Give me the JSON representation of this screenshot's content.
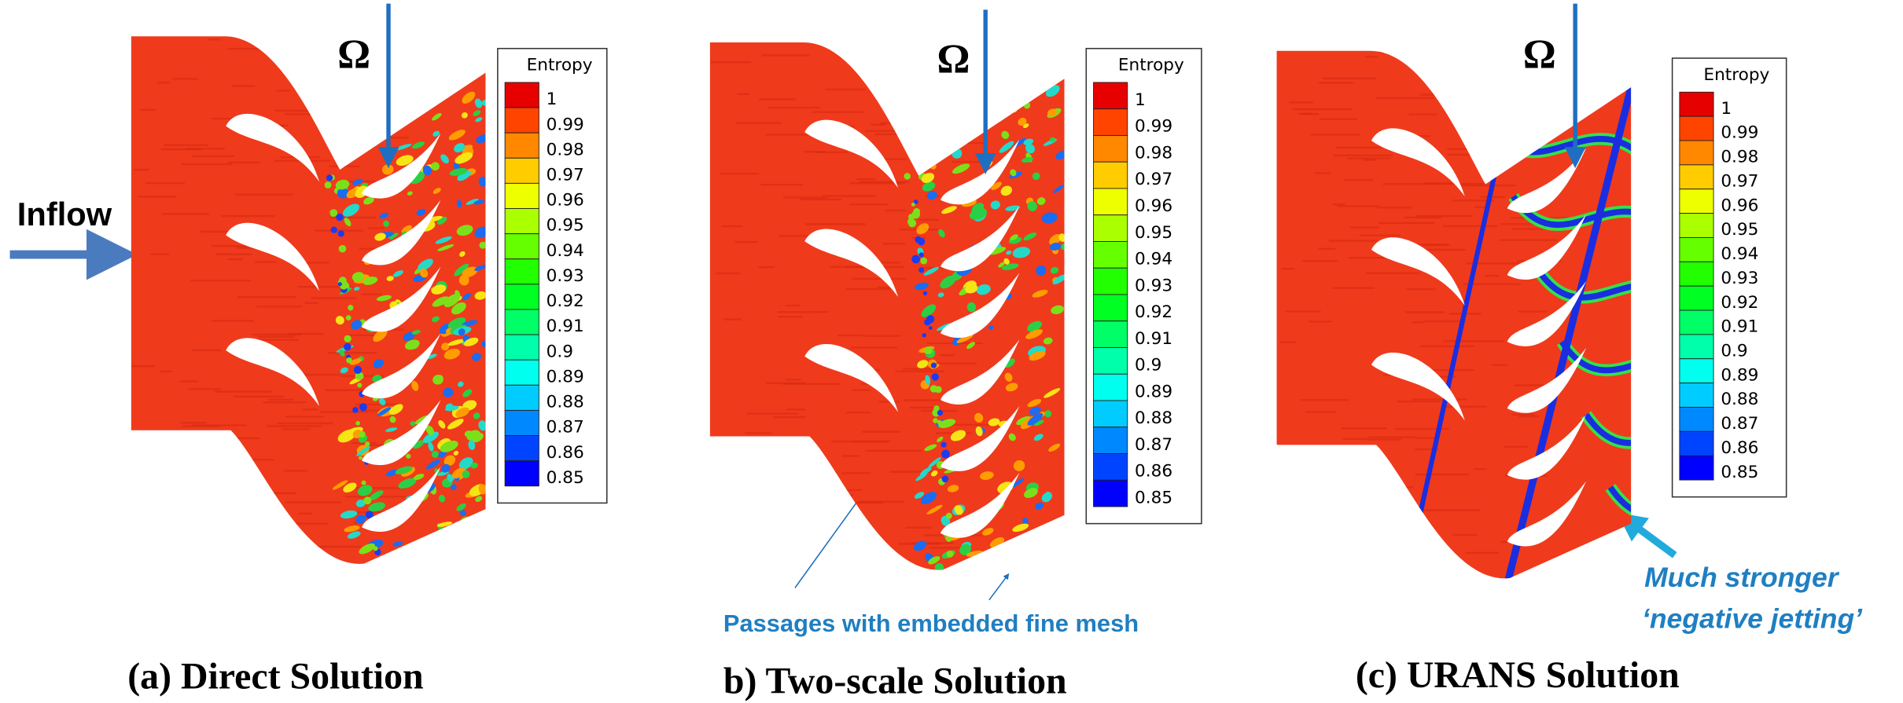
{
  "annotations": {
    "inflow": "Inflow",
    "passages": "Passages with embedded fine mesh",
    "jetting": [
      "Much stronger",
      "‘negative jetting’"
    ]
  },
  "panels": [
    {
      "caption": "(a) Direct Solution",
      "omega": "Ω",
      "colorbar": {
        "title": "Entropy",
        "levels": [
          1,
          0.99,
          0.98,
          0.97,
          0.96,
          0.95,
          0.94,
          0.93,
          0.92,
          0.91,
          0.9,
          0.89,
          0.88,
          0.87,
          0.86,
          0.85
        ]
      }
    },
    {
      "caption": "b) Two-scale Solution",
      "omega": "Ω",
      "colorbar": {
        "title": "Entropy",
        "levels": [
          1,
          0.99,
          0.98,
          0.97,
          0.96,
          0.95,
          0.94,
          0.93,
          0.92,
          0.91,
          0.9,
          0.89,
          0.88,
          0.87,
          0.86,
          0.85
        ]
      }
    },
    {
      "caption": "(c)  URANS Solution",
      "omega": "Ω",
      "colorbar": {
        "title": "Entropy",
        "levels": [
          1,
          0.99,
          0.98,
          0.97,
          0.96,
          0.95,
          0.94,
          0.93,
          0.92,
          0.91,
          0.9,
          0.89,
          0.88,
          0.87,
          0.86,
          0.85
        ]
      }
    }
  ]
}
